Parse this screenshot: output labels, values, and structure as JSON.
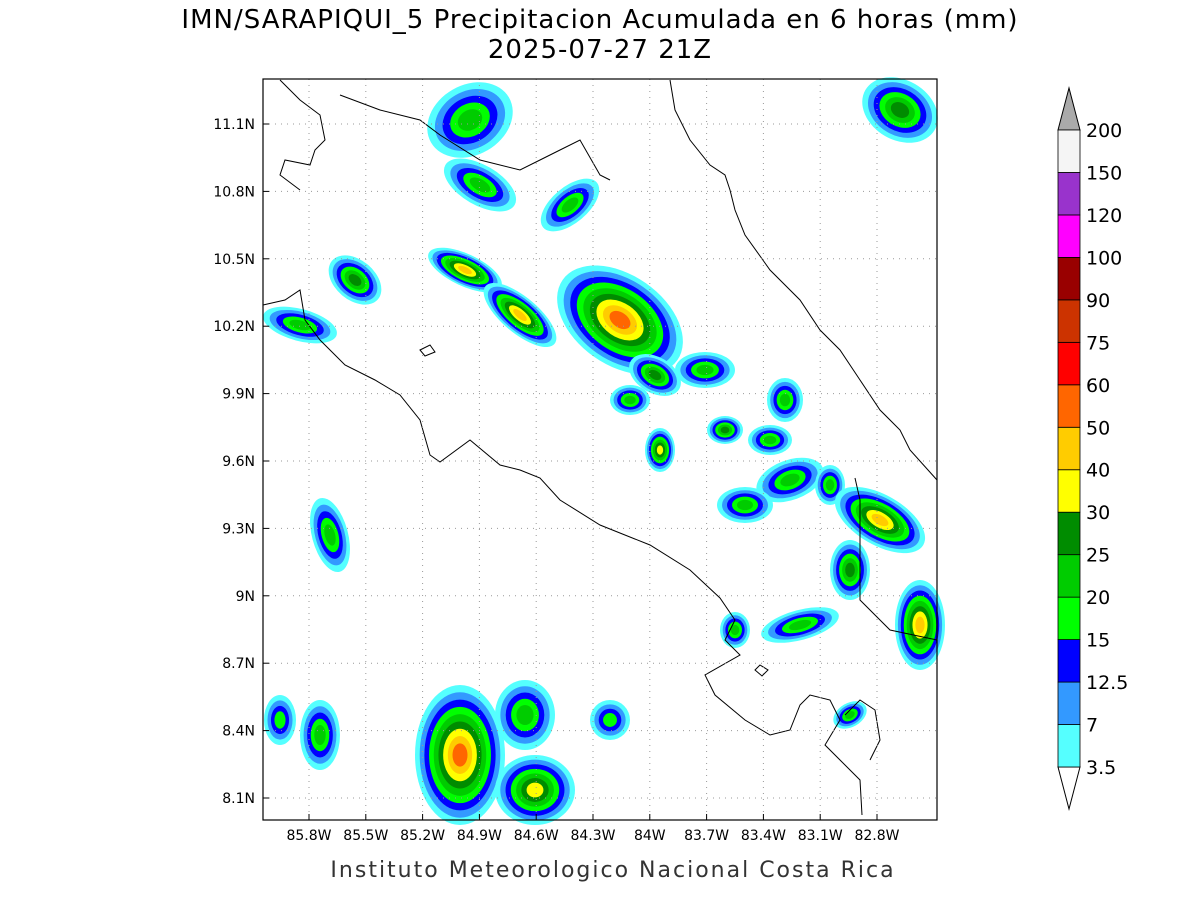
{
  "title": "IMN/SARAPIQUI_5 Precipitacion Acumulada en 6 horas (mm)",
  "subtitle": "2025-07-27 21Z",
  "x_ticks": [
    "85.8W",
    "85.5W",
    "85.2W",
    "84.9W",
    "84.6W",
    "84.3W",
    "84W",
    "83.7W",
    "83.4W",
    "83.1W",
    "82.8W"
  ],
  "y_ticks": [
    "11.1N",
    "10.8N",
    "10.5N",
    "10.2N",
    "9.9N",
    "9.6N",
    "9.3N",
    "9N",
    "8.7N",
    "8.4N",
    "8.1N"
  ],
  "colorbar": {
    "levels": [
      3.5,
      7,
      12.5,
      15,
      20,
      25,
      30,
      40,
      50,
      60,
      75,
      90,
      100,
      120,
      150,
      200
    ],
    "colors": [
      "#55ffff",
      "#3399ff",
      "#0000ff",
      "#00ff00",
      "#00cc00",
      "#008c00",
      "#ffff00",
      "#ffcc00",
      "#ff6600",
      "#ff0000",
      "#cc3300",
      "#990000",
      "#ff00ff",
      "#9933cc",
      "#f5f5f5"
    ]
  },
  "footer": "Instituto Meteorologico Nacional Costa Rica"
}
